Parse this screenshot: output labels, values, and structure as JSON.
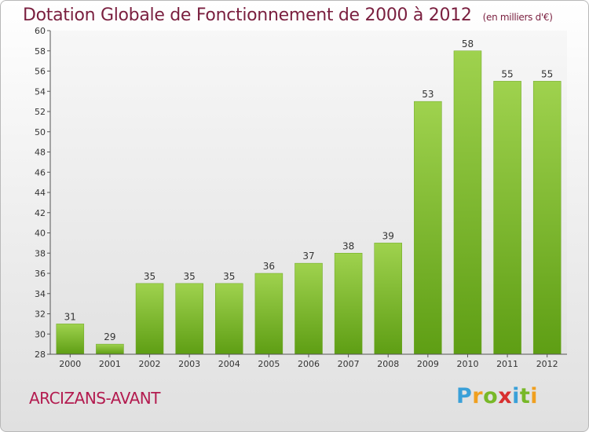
{
  "header": {
    "title": "Dotation Globale de Fonctionnement de 2000 à 2012",
    "unit": "(en milliers d'€)"
  },
  "footer": {
    "commune": "ARCIZANS-AVANT",
    "logo_letters": [
      "P",
      "r",
      "o",
      "x",
      "i",
      "t",
      "i"
    ],
    "logo_colors": [
      "#3aa0d8",
      "#f0a020",
      "#78b828",
      "#d83030",
      "#3aa0d8",
      "#78b828",
      "#f0a020"
    ]
  },
  "chart_data": {
    "type": "bar",
    "categories": [
      "2000",
      "2001",
      "2002",
      "2003",
      "2004",
      "2005",
      "2006",
      "2007",
      "2008",
      "2009",
      "2010",
      "2011",
      "2012"
    ],
    "values": [
      31,
      29,
      35,
      35,
      35,
      36,
      37,
      38,
      39,
      53,
      58,
      55,
      55
    ],
    "title": "Dotation Globale de Fonctionnement de 2000 à 2012",
    "ylim": [
      28,
      60
    ],
    "yticks": [
      28,
      30,
      32,
      34,
      36,
      38,
      40,
      42,
      44,
      46,
      48,
      50,
      52,
      54,
      56,
      58,
      60
    ],
    "grid": false,
    "bar_color": "#8cc83c"
  }
}
